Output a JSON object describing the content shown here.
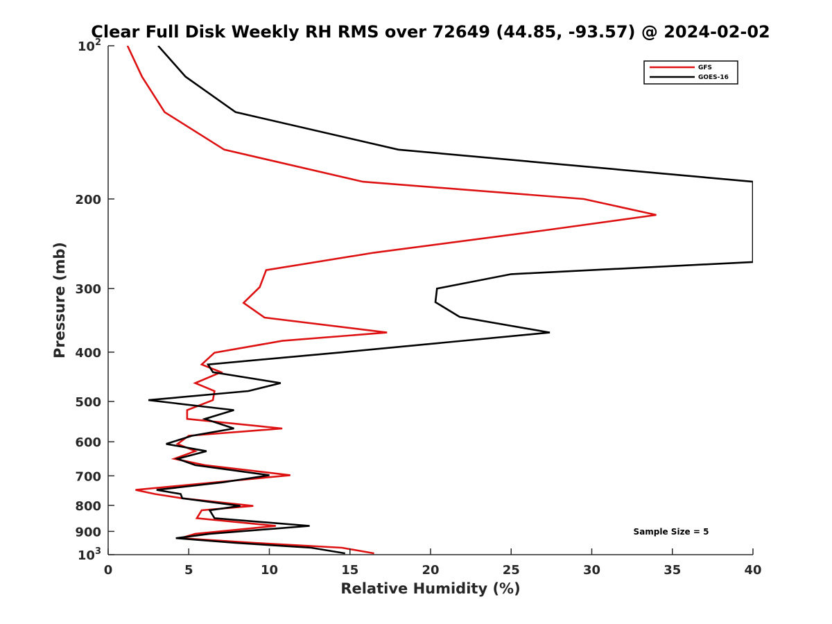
{
  "chart_data": {
    "type": "line",
    "title": "Clear Full Disk Weekly RH RMS over 72649 (44.85, -93.57) @ 2024-02-02",
    "xlabel": "Relative Humidity (%)",
    "ylabel": "Pressure (mb)",
    "xlim": [
      0,
      40
    ],
    "ylim": [
      1000,
      100
    ],
    "y_scale": "log",
    "y_reversed": true,
    "grid": false,
    "legend_position": "top-right",
    "x_ticks": [
      "0",
      "5",
      "10",
      "15",
      "20",
      "25",
      "30",
      "35",
      "40"
    ],
    "y_ticks": [
      {
        "value": 100,
        "label": "10",
        "sup": "2"
      },
      {
        "value": 200,
        "label": "200"
      },
      {
        "value": 300,
        "label": "300"
      },
      {
        "value": 400,
        "label": "400"
      },
      {
        "value": 500,
        "label": "500"
      },
      {
        "value": 600,
        "label": "600"
      },
      {
        "value": 700,
        "label": "700"
      },
      {
        "value": 800,
        "label": "800"
      },
      {
        "value": 900,
        "label": "900"
      },
      {
        "value": 1000,
        "label": "10",
        "sup": "3"
      }
    ],
    "annotation": "Sample Size = 5",
    "series": [
      {
        "name": "GFS",
        "color": "#dd1111",
        "points": [
          [
            1.2,
            100
          ],
          [
            2.1,
            115
          ],
          [
            3.5,
            135
          ],
          [
            7.2,
            160
          ],
          [
            15.8,
            185
          ],
          [
            29.5,
            200
          ],
          [
            34.0,
            215
          ],
          [
            27.3,
            230
          ],
          [
            16.5,
            255
          ],
          [
            9.8,
            276
          ],
          [
            9.4,
            298
          ],
          [
            8.4,
            320
          ],
          [
            9.7,
            342
          ],
          [
            17.3,
            366
          ],
          [
            10.8,
            380
          ],
          [
            6.6,
            401
          ],
          [
            5.8,
            423
          ],
          [
            7.0,
            438
          ],
          [
            5.4,
            460
          ],
          [
            6.6,
            477
          ],
          [
            6.5,
            497
          ],
          [
            4.9,
            520
          ],
          [
            4.9,
            541
          ],
          [
            10.8,
            565
          ],
          [
            5.0,
            584
          ],
          [
            4.3,
            606
          ],
          [
            5.4,
            626
          ],
          [
            4.1,
            648
          ],
          [
            6.0,
            667
          ],
          [
            11.3,
            698
          ],
          [
            1.7,
            746
          ],
          [
            2.9,
            760
          ],
          [
            4.6,
            775
          ],
          [
            9.0,
            802
          ],
          [
            5.8,
            818
          ],
          [
            5.5,
            848
          ],
          [
            10.4,
            878
          ],
          [
            5.4,
            910
          ],
          [
            4.5,
            928
          ],
          [
            9.1,
            948
          ],
          [
            14.5,
            969
          ],
          [
            16.5,
            994
          ]
        ]
      },
      {
        "name": "GOES-16",
        "color": "#000000",
        "points": [
          [
            3.1,
            100
          ],
          [
            4.8,
            115
          ],
          [
            7.9,
            135
          ],
          [
            18.0,
            160
          ],
          [
            40,
            185
          ],
          [
            40,
            266
          ],
          [
            25.0,
            281
          ],
          [
            20.4,
            300
          ],
          [
            20.3,
            319
          ],
          [
            21.8,
            341
          ],
          [
            27.4,
            366
          ],
          [
            14.6,
            400
          ],
          [
            6.2,
            423
          ],
          [
            6.5,
            438
          ],
          [
            10.7,
            460
          ],
          [
            8.7,
            477
          ],
          [
            2.5,
            497
          ],
          [
            7.8,
            520
          ],
          [
            6.0,
            541
          ],
          [
            7.8,
            565
          ],
          [
            5.2,
            584
          ],
          [
            3.6,
            606
          ],
          [
            6.1,
            626
          ],
          [
            4.3,
            648
          ],
          [
            5.4,
            667
          ],
          [
            10.0,
            698
          ],
          [
            7.1,
            721
          ],
          [
            3.0,
            746
          ],
          [
            4.5,
            760
          ],
          [
            4.6,
            775
          ],
          [
            8.2,
            802
          ],
          [
            6.3,
            818
          ],
          [
            6.6,
            848
          ],
          [
            12.5,
            878
          ],
          [
            6.3,
            910
          ],
          [
            4.2,
            928
          ],
          [
            7.9,
            948
          ],
          [
            12.6,
            969
          ],
          [
            14.7,
            994
          ]
        ]
      }
    ]
  }
}
